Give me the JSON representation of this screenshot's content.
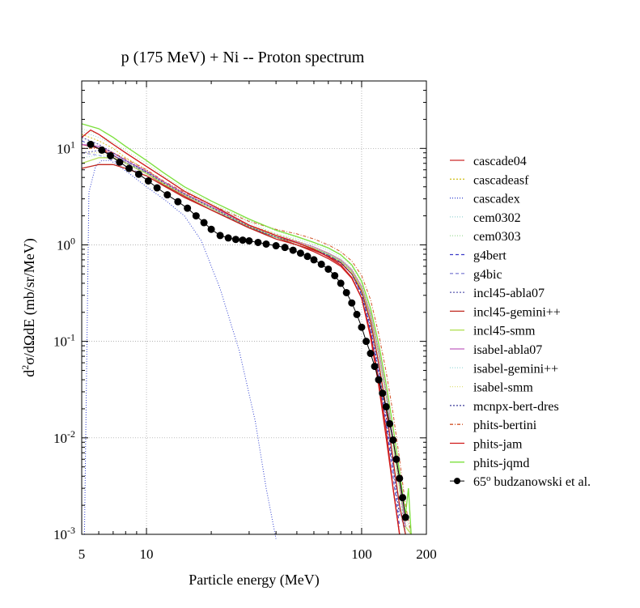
{
  "chart_data": {
    "type": "line",
    "title": "p (175 MeV) + Ni -- Proton spectrum",
    "xlabel": "Particle energy (MeV)",
    "ylabel": "d2σ/dΩdE (mb/sr/MeV)",
    "xscale": "log",
    "yscale": "log",
    "xlim": [
      5,
      200
    ],
    "ylim": [
      0.001,
      50
    ],
    "grid": true,
    "legend_position": "right",
    "x_ticks": [
      {
        "value": 5,
        "label": "5"
      },
      {
        "value": 10,
        "label": "10"
      },
      {
        "value": 100,
        "label": "100"
      },
      {
        "value": 200,
        "label": "200"
      }
    ],
    "y_ticks": [
      {
        "value": 10,
        "base": "10",
        "exp": "1"
      },
      {
        "value": 1,
        "base": "10",
        "exp": "0"
      },
      {
        "value": 0.1,
        "base": "10",
        "exp": "-1"
      },
      {
        "value": 0.01,
        "base": "10",
        "exp": "-2"
      },
      {
        "value": 0.001,
        "base": "10",
        "exp": "-3"
      }
    ],
    "series": [
      {
        "name": "cascade04",
        "color": "#cc2a2a",
        "dash": "",
        "x": [
          5,
          6,
          7,
          8,
          10,
          12,
          15,
          20,
          30,
          40,
          50,
          60,
          70,
          80,
          90,
          100,
          110,
          120,
          130,
          140,
          150
        ],
        "y": [
          11,
          10,
          8.5,
          7,
          5.5,
          4.2,
          3.2,
          2.3,
          1.5,
          1.2,
          1.0,
          0.85,
          0.72,
          0.6,
          0.45,
          0.28,
          0.12,
          0.04,
          0.012,
          0.003,
          0.001
        ]
      },
      {
        "name": "cascadeasf",
        "color": "#d4c42a",
        "dash": "2,2",
        "x": [
          5,
          6,
          7,
          8,
          10,
          12,
          15,
          20,
          30,
          40,
          50,
          60,
          70,
          80,
          90,
          100,
          110,
          120,
          130,
          140,
          150,
          160
        ],
        "y": [
          14,
          12,
          10,
          8,
          6,
          4.5,
          3.4,
          2.5,
          1.6,
          1.3,
          1.1,
          0.95,
          0.8,
          0.68,
          0.52,
          0.33,
          0.16,
          0.06,
          0.02,
          0.006,
          0.002,
          0.001
        ]
      },
      {
        "name": "cascadex",
        "color": "#2f3fd0",
        "dash": "1,2",
        "x": [
          5.15,
          5.4,
          5.8,
          6.2,
          6.8,
          7.5,
          8.5,
          10,
          12,
          15,
          18,
          22,
          27,
          32,
          36,
          40
        ],
        "y": [
          0.001,
          3.5,
          6.5,
          7.5,
          7.5,
          6.5,
          5.3,
          4.0,
          3.0,
          2.0,
          1.1,
          0.35,
          0.08,
          0.015,
          0.003,
          0.0009
        ]
      },
      {
        "name": "cem0302",
        "color": "#9ad6d6",
        "dash": "1,2",
        "x": [
          5,
          6,
          7,
          8,
          10,
          12,
          15,
          20,
          30,
          40,
          50,
          60,
          70,
          80,
          90,
          100,
          110,
          120,
          130,
          140,
          150,
          160
        ],
        "y": [
          15,
          13,
          11,
          9,
          6.5,
          5,
          3.6,
          2.6,
          1.7,
          1.3,
          1.15,
          1.0,
          0.88,
          0.74,
          0.56,
          0.36,
          0.17,
          0.07,
          0.025,
          0.008,
          0.003,
          0.001
        ]
      },
      {
        "name": "cem0303",
        "color": "#a8dfa0",
        "dash": "1,2",
        "x": [
          5,
          6,
          7,
          8,
          10,
          12,
          15,
          20,
          30,
          40,
          50,
          60,
          70,
          80,
          90,
          100,
          110,
          120,
          130,
          140,
          150,
          160,
          170
        ],
        "y": [
          16,
          14,
          11.5,
          9.5,
          7,
          5.2,
          3.8,
          2.7,
          1.8,
          1.4,
          1.2,
          1.05,
          0.92,
          0.78,
          0.6,
          0.4,
          0.2,
          0.08,
          0.03,
          0.01,
          0.004,
          0.0015,
          0.001
        ]
      },
      {
        "name": "g4bert",
        "color": "#3a3ac8",
        "dash": "4,3",
        "x": [
          5,
          6,
          7,
          8,
          10,
          12,
          15,
          20,
          30,
          40,
          50,
          60,
          70,
          80,
          90,
          100,
          110,
          120,
          130,
          140,
          150
        ],
        "y": [
          12,
          10,
          8.5,
          7.2,
          5.6,
          4.3,
          3.3,
          2.4,
          1.5,
          1.2,
          1.05,
          0.9,
          0.78,
          0.66,
          0.5,
          0.3,
          0.13,
          0.045,
          0.014,
          0.004,
          0.0012
        ]
      },
      {
        "name": "g4bic",
        "color": "#8a8ad8",
        "dash": "4,3",
        "x": [
          5,
          6,
          7,
          8,
          10,
          12,
          15,
          20,
          30,
          40,
          50,
          60,
          70,
          80,
          90,
          100,
          110,
          120,
          130,
          140,
          150,
          160
        ],
        "y": [
          9,
          8.5,
          7.5,
          6.5,
          5.2,
          4.1,
          3.1,
          2.3,
          1.5,
          1.15,
          1.0,
          0.88,
          0.76,
          0.64,
          0.5,
          0.32,
          0.15,
          0.055,
          0.018,
          0.005,
          0.0018,
          0.001
        ]
      },
      {
        "name": "incl45-abla07",
        "color": "#5a5ab0",
        "dash": "2,2",
        "x": [
          5,
          6,
          7,
          8,
          10,
          12,
          15,
          20,
          30,
          40,
          50,
          60,
          70,
          80,
          90,
          100,
          110,
          120,
          130,
          140,
          150,
          160
        ],
        "y": [
          9,
          9.5,
          8.5,
          7.2,
          5.6,
          4.3,
          3.3,
          2.4,
          1.55,
          1.2,
          1.05,
          0.92,
          0.8,
          0.68,
          0.53,
          0.35,
          0.18,
          0.075,
          0.028,
          0.009,
          0.003,
          0.001
        ]
      },
      {
        "name": "incl45-gemini++",
        "color": "#c0281e",
        "dash": "",
        "x": [
          5,
          6,
          7,
          8,
          10,
          12,
          15,
          20,
          30,
          40,
          50,
          60,
          70,
          80,
          90,
          100,
          110,
          120,
          130,
          140,
          150,
          160
        ],
        "y": [
          6.2,
          6.8,
          6.8,
          6.2,
          5.2,
          4.1,
          3.1,
          2.3,
          1.5,
          1.15,
          1.0,
          0.88,
          0.76,
          0.65,
          0.5,
          0.33,
          0.16,
          0.06,
          0.02,
          0.006,
          0.002,
          0.001
        ]
      },
      {
        "name": "incl45-smm",
        "color": "#b4e05a",
        "dash": "",
        "x": [
          5,
          6,
          7,
          8,
          10,
          12,
          15,
          20,
          30,
          40,
          50,
          60,
          70,
          80,
          90,
          100,
          110,
          120,
          130,
          140,
          150,
          160,
          170
        ],
        "y": [
          7,
          8,
          8,
          7,
          5.5,
          4.3,
          3.3,
          2.4,
          1.55,
          1.2,
          1.05,
          0.92,
          0.8,
          0.68,
          0.53,
          0.35,
          0.18,
          0.075,
          0.028,
          0.009,
          0.003,
          0.0012,
          0.001
        ]
      },
      {
        "name": "isabel-abla07",
        "color": "#c060c0",
        "dash": "",
        "x": [
          5,
          6,
          7,
          8,
          10,
          12,
          15,
          20,
          30,
          40,
          50,
          60,
          70,
          80,
          90,
          100,
          110,
          120,
          130,
          140,
          150,
          160
        ],
        "y": [
          11,
          10.5,
          9,
          7.5,
          5.8,
          4.5,
          3.4,
          2.5,
          1.6,
          1.25,
          1.08,
          0.95,
          0.82,
          0.7,
          0.55,
          0.37,
          0.19,
          0.08,
          0.03,
          0.01,
          0.0035,
          0.0012
        ]
      },
      {
        "name": "isabel-gemini++",
        "color": "#a6dede",
        "dash": "1,2",
        "x": [
          5,
          6,
          7,
          8,
          10,
          12,
          15,
          20,
          30,
          40,
          50,
          60,
          70,
          80,
          90,
          100,
          110,
          120,
          130,
          140,
          150,
          160
        ],
        "y": [
          8,
          8.5,
          8,
          7,
          5.6,
          4.4,
          3.3,
          2.4,
          1.55,
          1.22,
          1.06,
          0.93,
          0.81,
          0.69,
          0.54,
          0.36,
          0.185,
          0.078,
          0.029,
          0.0095,
          0.0032,
          0.0011
        ]
      },
      {
        "name": "isabel-smm",
        "color": "#e0e07a",
        "dash": "1,2",
        "x": [
          5,
          6,
          7,
          8,
          10,
          12,
          15,
          20,
          30,
          40,
          50,
          60,
          70,
          80,
          90,
          100,
          110,
          120,
          130,
          140,
          150,
          160,
          170
        ],
        "y": [
          9,
          9,
          8.2,
          7.2,
          5.7,
          4.4,
          3.35,
          2.45,
          1.58,
          1.24,
          1.08,
          0.95,
          0.83,
          0.71,
          0.56,
          0.38,
          0.2,
          0.085,
          0.032,
          0.011,
          0.0038,
          0.0013,
          0.001
        ]
      },
      {
        "name": "mcnpx-bert-dres",
        "color": "#3a3a9a",
        "dash": "2,2",
        "x": [
          5,
          6,
          7,
          8,
          10,
          12,
          15,
          20,
          30,
          40,
          50,
          60,
          70,
          80,
          90,
          100,
          110,
          120,
          130,
          140,
          150
        ],
        "y": [
          13,
          11,
          9,
          7.5,
          5.7,
          4.4,
          3.35,
          2.45,
          1.55,
          1.2,
          1.05,
          0.9,
          0.78,
          0.66,
          0.5,
          0.31,
          0.14,
          0.05,
          0.016,
          0.005,
          0.0015
        ]
      },
      {
        "name": "phits-bertini",
        "color": "#d2562a",
        "dash": "4,2,1,2",
        "x": [
          5,
          6,
          7,
          8,
          10,
          12,
          15,
          20,
          30,
          40,
          50,
          60,
          70,
          80,
          90,
          100,
          110,
          120,
          130,
          140,
          150,
          160,
          170
        ],
        "y": [
          10,
          10,
          9,
          7.8,
          6,
          4.6,
          3.5,
          2.6,
          1.75,
          1.45,
          1.3,
          1.15,
          1.0,
          0.85,
          0.68,
          0.48,
          0.27,
          0.12,
          0.048,
          0.018,
          0.006,
          0.002,
          0.001
        ]
      },
      {
        "name": "phits-jam",
        "color": "#d01818",
        "dash": "",
        "x": [
          5,
          5.5,
          6,
          7,
          8,
          10,
          12,
          15,
          20,
          30,
          40,
          50,
          60,
          70,
          80,
          90,
          100,
          110,
          120,
          130,
          140,
          150
        ],
        "y": [
          13,
          15.5,
          14,
          11,
          9,
          6.5,
          5,
          3.6,
          2.6,
          1.6,
          1.25,
          1.05,
          0.9,
          0.75,
          0.62,
          0.46,
          0.28,
          0.11,
          0.035,
          0.01,
          0.003,
          0.001
        ]
      },
      {
        "name": "phits-jqmd",
        "color": "#7ce03c",
        "dash": "",
        "x": [
          5,
          6,
          7,
          8,
          10,
          12,
          15,
          20,
          30,
          40,
          50,
          60,
          70,
          80,
          90,
          100,
          110,
          120,
          130,
          140,
          150,
          160,
          165,
          170
        ],
        "y": [
          18,
          16,
          13,
          10.5,
          7.5,
          5.6,
          4.0,
          2.85,
          1.85,
          1.42,
          1.22,
          1.06,
          0.93,
          0.79,
          0.62,
          0.42,
          0.22,
          0.095,
          0.036,
          0.013,
          0.0045,
          0.0016,
          0.003,
          0.001
        ]
      },
      {
        "name": "65° budzanowski et al.",
        "label_prefix": "65",
        "label_sup": "o",
        "label_suffix": " budzanowski et al.",
        "color": "#000000",
        "dash": "",
        "markers": true,
        "x": [
          5.5,
          6.2,
          6.8,
          7.5,
          8.3,
          9.2,
          10.2,
          11.2,
          12.5,
          14,
          15.5,
          17,
          18.5,
          20,
          22,
          24,
          26,
          28,
          30,
          33,
          36,
          40,
          44,
          48,
          52,
          56,
          60,
          65,
          70,
          75,
          80,
          85,
          90,
          95,
          100,
          105,
          110,
          115,
          120,
          125,
          130,
          135,
          140,
          145,
          150,
          155,
          160
        ],
        "y": [
          11,
          9.6,
          8.4,
          7.2,
          6.2,
          5.4,
          4.6,
          3.9,
          3.3,
          2.8,
          2.4,
          2.0,
          1.7,
          1.45,
          1.25,
          1.18,
          1.14,
          1.12,
          1.1,
          1.06,
          1.02,
          0.98,
          0.94,
          0.88,
          0.82,
          0.76,
          0.7,
          0.63,
          0.56,
          0.48,
          0.4,
          0.32,
          0.25,
          0.19,
          0.14,
          0.1,
          0.075,
          0.055,
          0.04,
          0.029,
          0.021,
          0.014,
          0.0095,
          0.006,
          0.0038,
          0.0024,
          0.0015
        ]
      }
    ]
  }
}
